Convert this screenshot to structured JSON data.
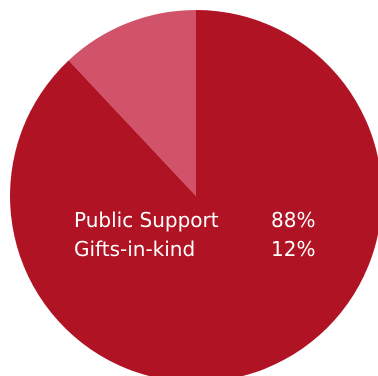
{
  "chart_data": {
    "type": "pie",
    "slices": [
      {
        "label": "Public Support",
        "value": 88,
        "value_label": "88%",
        "color": "#b01324"
      },
      {
        "label": "Gifts-in-kind",
        "value": 12,
        "value_label": "12%",
        "color": "#d1536a"
      }
    ],
    "title": "",
    "legend": "center",
    "start_angle_deg": 0,
    "direction": "clockwise"
  }
}
